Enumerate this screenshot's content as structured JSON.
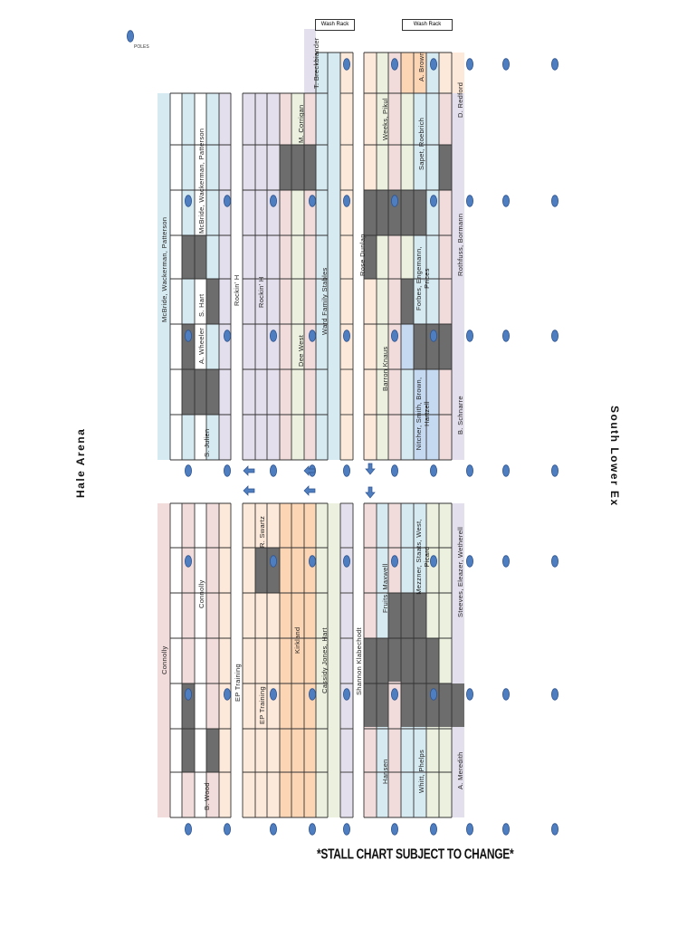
{
  "arena_left_title": "Hale Arena",
  "arena_right_title": "South Lower Ex",
  "footer_note": "*STALL CHART SUBJECT TO CHANGE*",
  "legend": {
    "pole_label": "POLES",
    "pole_icon": "pole-circle-icon",
    "pole_color": "#4f7ec0"
  },
  "wash_racks": [
    {
      "label": "Wash Rack"
    },
    {
      "label": "Wash Rack"
    }
  ],
  "colors": {
    "light_blue": "#d6eaf1",
    "pink": "#f2dcdb",
    "lavender": "#e4dfec",
    "peach": "#fde9d9",
    "orange": "#fcd5b4",
    "green": "#ebf1de",
    "blue": "#c5d9f1",
    "gray": "#7f7f7f"
  },
  "top_block_labels": [
    "McBride, Wackerman, Patterson",
    "McBride, Wackerman, Patterson",
    "S. Hart",
    "A. Wheeler",
    "S. Julien",
    "Rockin' H",
    "Rockin' H",
    "M. Corrigan",
    "Dee West",
    "Ward Family Stables",
    "T. Breckbiander",
    "Rose Dunlap",
    "Weeks, Pikul",
    "Barron Knaus",
    "A. Brown",
    "Sapet, Roebrich",
    "Forbes, Engemann, Prices",
    "Nitcher, Smith, Brown, Hartzell",
    "D. Redford",
    "Rothfuss, Bormann",
    "B. Schnarre"
  ],
  "bottom_block_labels": [
    "Connolly",
    "Connolly",
    "B. Wood",
    "EP Training",
    "EP Training",
    "R. Swartz",
    "Kirkland",
    "Cassidy Jones, Hart",
    "Shannon Klabechodt",
    "Fruits, Maxwell",
    "Hansen",
    "Mezzner, Staats, West, Picard",
    "Whitt, Phelps",
    "Steeves, Eleazer, Wetherell",
    "A. Meredith"
  ]
}
